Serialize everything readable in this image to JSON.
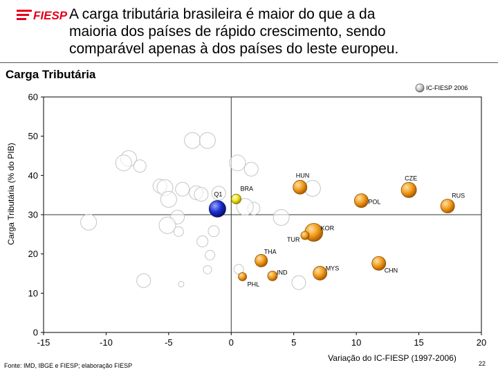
{
  "logo": {
    "text": "FIESP",
    "color": "#e3001b"
  },
  "headline": {
    "lines": [
      "A carga tributária brasileira é maior do que a da",
      "maioria dos países de rápido crescimento, sendo",
      "comparável apenas à dos países do leste europeu."
    ]
  },
  "colors": {
    "highlight": "#f29b1a",
    "brazil": "#f2e21c",
    "q1": "#1a2ccf",
    "other": "#ffffff"
  },
  "chart_data": {
    "type": "scatter",
    "title": "Carga Tributária",
    "xlabel": "Variação do IC-FIESP (1997-2006)",
    "ylabel": "Carga Tributária (% do PIB)",
    "xlim": [
      -15,
      20
    ],
    "ylim": [
      0,
      60
    ],
    "xticks": [
      "-15",
      "-10",
      "-5",
      "0",
      "5",
      "10",
      "15",
      "20"
    ],
    "yticks": [
      "0",
      "10",
      "20",
      "30",
      "40",
      "50",
      "60"
    ],
    "reference_lines": {
      "x": 0,
      "y": 30
    },
    "legend": {
      "label": "IC-FIESP 2006",
      "position": "top-right"
    },
    "labeled_points": [
      {
        "label": "HUN",
        "x": 5.5,
        "y": 37,
        "size": 2,
        "kind": "highlight"
      },
      {
        "label": "CZE",
        "x": 14.2,
        "y": 36.3,
        "size": 2.2,
        "kind": "highlight"
      },
      {
        "label": "RUS",
        "x": 17.3,
        "y": 32.2,
        "size": 2,
        "kind": "highlight"
      },
      {
        "label": "POL",
        "x": 10.4,
        "y": 33.6,
        "size": 2,
        "kind": "highlight"
      },
      {
        "label": "BRA",
        "x": 0.4,
        "y": 34,
        "size": 1.4,
        "kind": "brazil"
      },
      {
        "label": "Q1",
        "x": -1.1,
        "y": 31.5,
        "size": 2.4,
        "kind": "q1"
      },
      {
        "label": "KOR",
        "x": 6.6,
        "y": 25.5,
        "size": 2.6,
        "kind": "highlight"
      },
      {
        "label": "TUR",
        "x": 5.9,
        "y": 24.7,
        "size": 1.2,
        "kind": "highlight"
      },
      {
        "label": "THA",
        "x": 2.4,
        "y": 18.3,
        "size": 1.8,
        "kind": "highlight"
      },
      {
        "label": "CHN",
        "x": 11.8,
        "y": 17.6,
        "size": 2,
        "kind": "highlight"
      },
      {
        "label": "MYS",
        "x": 7.1,
        "y": 15.1,
        "size": 2,
        "kind": "highlight"
      },
      {
        "label": "IND",
        "x": 3.3,
        "y": 14.4,
        "size": 1.4,
        "kind": "highlight"
      },
      {
        "label": "PHL",
        "x": 0.9,
        "y": 14.2,
        "size": 1.2,
        "kind": "highlight"
      }
    ],
    "other_points": [
      {
        "x": -3.1,
        "y": 48.9,
        "size": 2.3
      },
      {
        "x": -1.9,
        "y": 48.9,
        "size": 2.3
      },
      {
        "x": -8.2,
        "y": 44.3,
        "size": 2.3
      },
      {
        "x": -8.6,
        "y": 43.2,
        "size": 2.3
      },
      {
        "x": -7.3,
        "y": 42.4,
        "size": 1.8
      },
      {
        "x": 0.5,
        "y": 43.2,
        "size": 2.3
      },
      {
        "x": 1.6,
        "y": 41.6,
        "size": 2
      },
      {
        "x": -5.7,
        "y": 37.3,
        "size": 2
      },
      {
        "x": -5.3,
        "y": 36.9,
        "size": 2.3
      },
      {
        "x": -3.9,
        "y": 36.5,
        "size": 2
      },
      {
        "x": -2.8,
        "y": 35.6,
        "size": 2
      },
      {
        "x": -2.4,
        "y": 35.2,
        "size": 2
      },
      {
        "x": -1,
        "y": 35.5,
        "size": 2
      },
      {
        "x": -5,
        "y": 33.9,
        "size": 2.3
      },
      {
        "x": 1.8,
        "y": 31.6,
        "size": 1.8
      },
      {
        "x": 1.1,
        "y": 32,
        "size": 2.4
      },
      {
        "x": 6.5,
        "y": 36.7,
        "size": 2.3
      },
      {
        "x": -4.3,
        "y": 29.4,
        "size": 2
      },
      {
        "x": 4,
        "y": 29.3,
        "size": 2.3
      },
      {
        "x": -11.4,
        "y": 28.1,
        "size": 2.3
      },
      {
        "x": -5.1,
        "y": 27.3,
        "size": 2.4
      },
      {
        "x": -4.2,
        "y": 25.7,
        "size": 1.4
      },
      {
        "x": -1.4,
        "y": 25.8,
        "size": 1.6
      },
      {
        "x": -2.3,
        "y": 23.2,
        "size": 1.6
      },
      {
        "x": -1.7,
        "y": 19.7,
        "size": 1.4
      },
      {
        "x": -1.9,
        "y": 16,
        "size": 1.2
      },
      {
        "x": 0.6,
        "y": 16.1,
        "size": 1.4
      },
      {
        "x": -7,
        "y": 13.2,
        "size": 2
      },
      {
        "x": -4,
        "y": 12.3,
        "size": 0.8
      },
      {
        "x": 5.4,
        "y": 12.7,
        "size": 2
      }
    ]
  },
  "footer": {
    "source": "Fonte: IMD, IBGE e FIESP; elaboração FIESP",
    "page_number": "22"
  }
}
